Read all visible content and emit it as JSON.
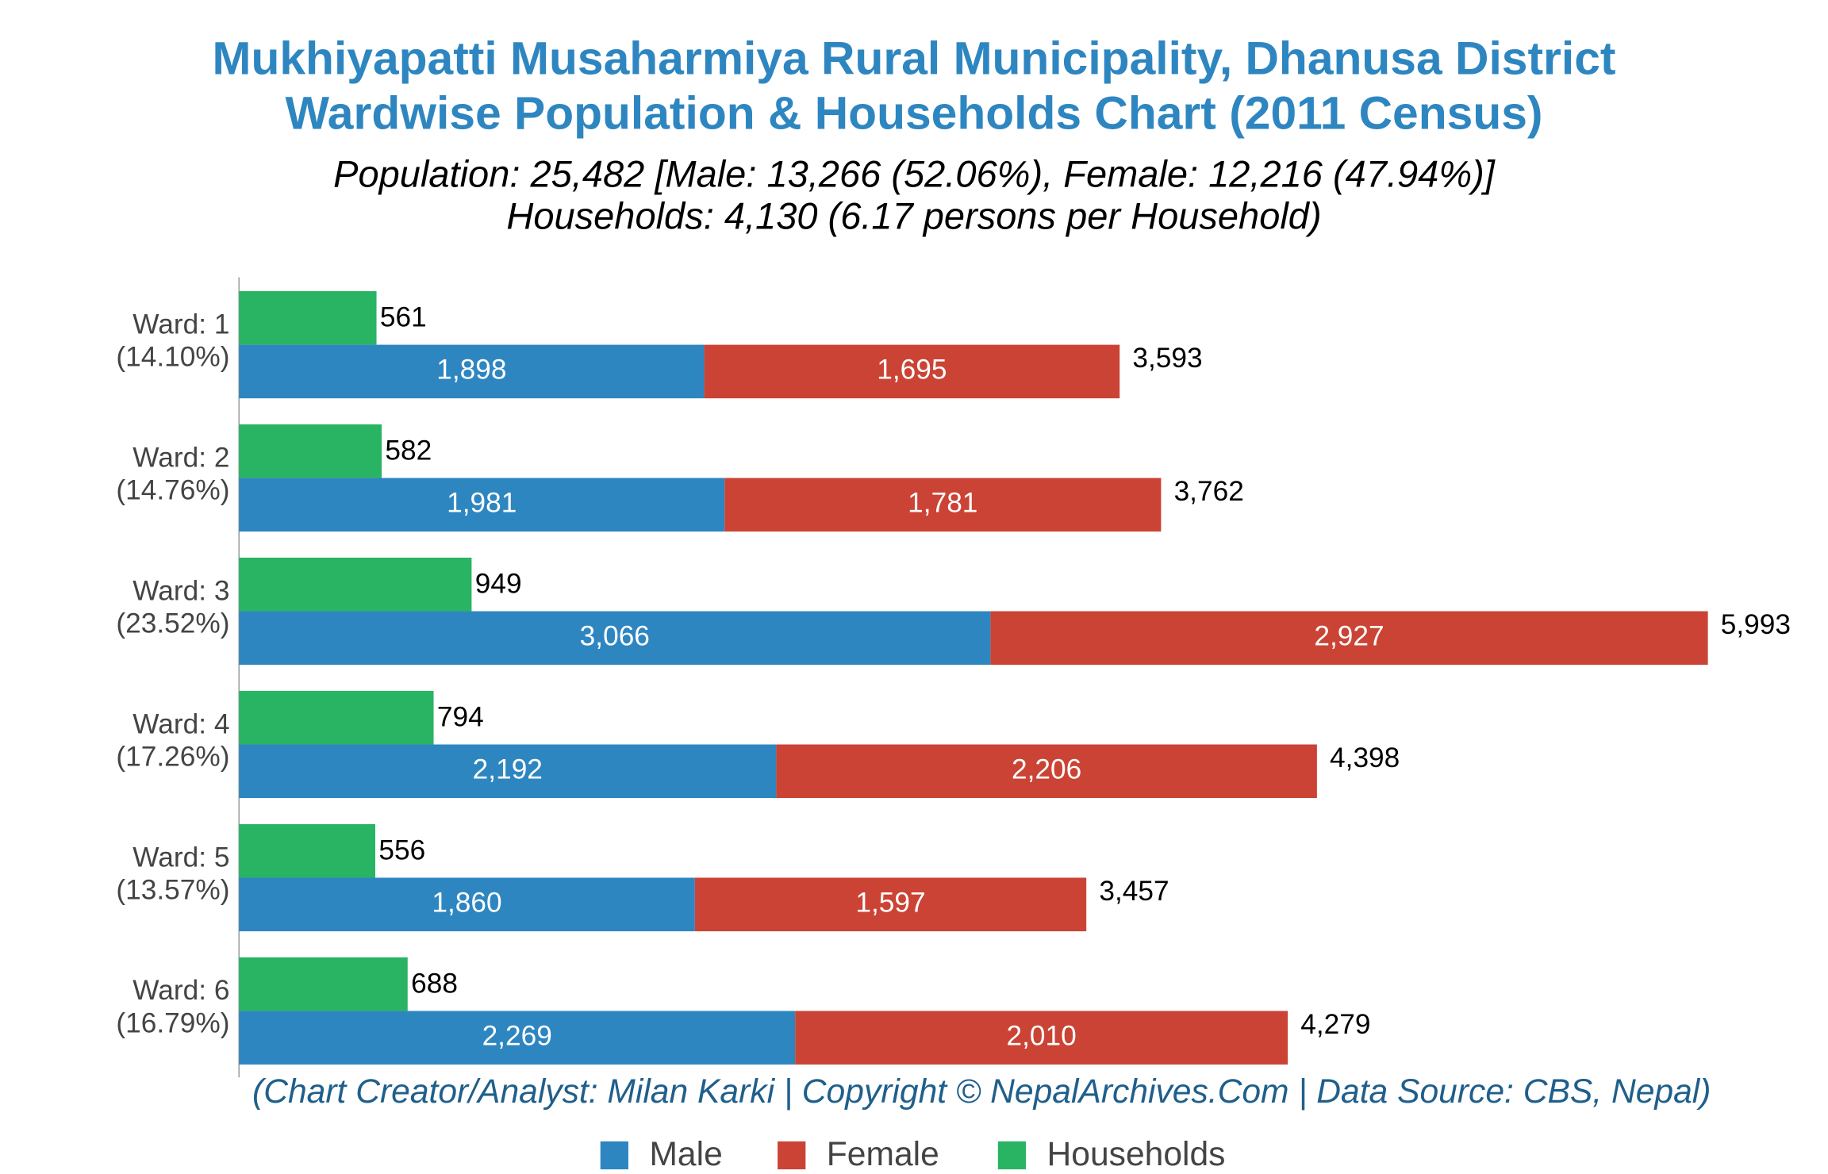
{
  "chart_data": {
    "type": "bar",
    "orientation": "horizontal",
    "title": "Mukhiyapatti Musaharmiya Rural Municipality, Dhanusa District",
    "title_line2": "Wardwise Population & Households Chart (2011 Census)",
    "subtitle": "Population: 25,482 [Male: 13,266 (52.06%), Female: 12,216 (47.94%)]",
    "subtitle_line2": "Households: 4,130 (6.17 persons per Household)",
    "footer": "(Chart Creator/Analyst: Milan Karki | Copyright © NepalArchives.Com | Data Source: CBS, Nepal)",
    "categories": [
      "Ward: 1",
      "Ward: 2",
      "Ward: 3",
      "Ward: 4",
      "Ward: 5",
      "Ward: 6"
    ],
    "category_shares": [
      "(14.10%)",
      "(14.76%)",
      "(23.52%)",
      "(17.26%)",
      "(13.57%)",
      "(16.79%)"
    ],
    "series": [
      {
        "name": "Male",
        "color": "#2e86c1",
        "stack": "population",
        "values": [
          1898,
          1981,
          3066,
          2192,
          1860,
          2269
        ],
        "value_labels": [
          "1,898",
          "1,981",
          "3,066",
          "2,192",
          "1,860",
          "2,269"
        ]
      },
      {
        "name": "Female",
        "color": "#cb4335",
        "stack": "population",
        "values": [
          1695,
          1781,
          2927,
          2206,
          1597,
          2010
        ],
        "value_labels": [
          "1,695",
          "1,781",
          "2,927",
          "2,206",
          "1,597",
          "2,010"
        ]
      },
      {
        "name": "Households",
        "color": "#28b463",
        "stack": "households",
        "values": [
          561,
          582,
          949,
          794,
          556,
          688
        ],
        "value_labels": [
          "561",
          "582",
          "949",
          "794",
          "556",
          "688"
        ]
      }
    ],
    "totals": [
      3593,
      3762,
      5993,
      4398,
      3457,
      4279
    ],
    "total_labels": [
      "3,593",
      "3,762",
      "5,993",
      "4,398",
      "3,457",
      "4,279"
    ],
    "xlim": [
      0,
      6200
    ]
  }
}
